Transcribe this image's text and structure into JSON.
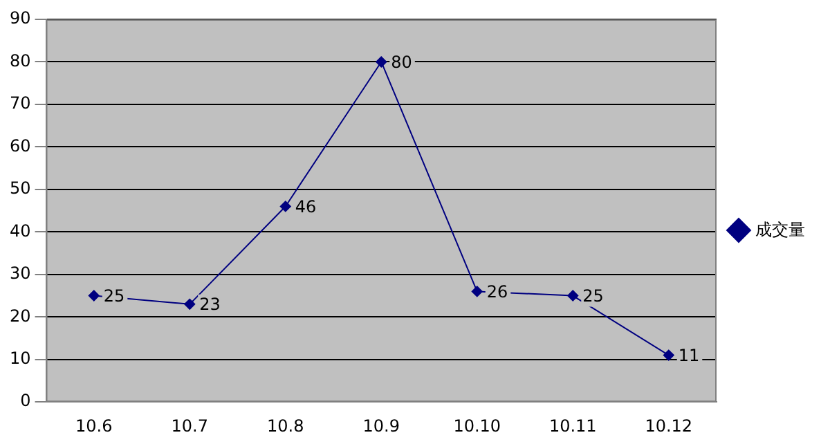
{
  "chart_data": {
    "type": "line",
    "categories": [
      "10.6",
      "10.7",
      "10.8",
      "10.9",
      "10.10",
      "10.11",
      "10.12"
    ],
    "series": [
      {
        "name": "成交量",
        "color": "#000080",
        "values": [
          25,
          23,
          46,
          80,
          26,
          25,
          11
        ]
      }
    ],
    "ylim": [
      0,
      90
    ],
    "yticks": [
      0,
      10,
      20,
      30,
      40,
      50,
      60,
      70,
      80,
      90
    ],
    "grid": "y",
    "legend": "right",
    "marker": "diamond",
    "line_style": "solid",
    "data_labels": true
  }
}
